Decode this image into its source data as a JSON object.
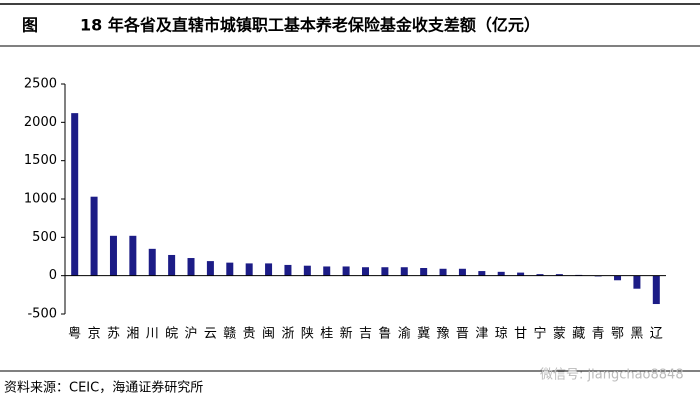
{
  "chart_data": {
    "type": "bar",
    "figure_label": "图",
    "title": "18 年各省及直辖市城镇职工基本养老保险基金收支差额（亿元）",
    "categories": [
      "粤",
      "京",
      "苏",
      "湘",
      "川",
      "皖",
      "沪",
      "云",
      "赣",
      "贵",
      "闽",
      "浙",
      "陕",
      "桂",
      "新",
      "吉",
      "鲁",
      "渝",
      "冀",
      "豫",
      "晋",
      "津",
      "琼",
      "甘",
      "宁",
      "蒙",
      "藏",
      "青",
      "鄂",
      "黑",
      "辽"
    ],
    "values": [
      2120,
      1030,
      520,
      520,
      350,
      270,
      230,
      190,
      170,
      160,
      160,
      140,
      130,
      120,
      120,
      110,
      110,
      110,
      100,
      90,
      90,
      60,
      50,
      40,
      20,
      20,
      10,
      -10,
      -60,
      -170,
      -370
    ],
    "color": "#1c1c86",
    "ylim": [
      -500,
      2500
    ],
    "yticks": [
      -500,
      0,
      500,
      1000,
      1500,
      2000,
      2500
    ],
    "grid": false,
    "source": "资料来源：CEIC，海通证券研究所",
    "watermark": "微信号: jiangchao8848"
  }
}
